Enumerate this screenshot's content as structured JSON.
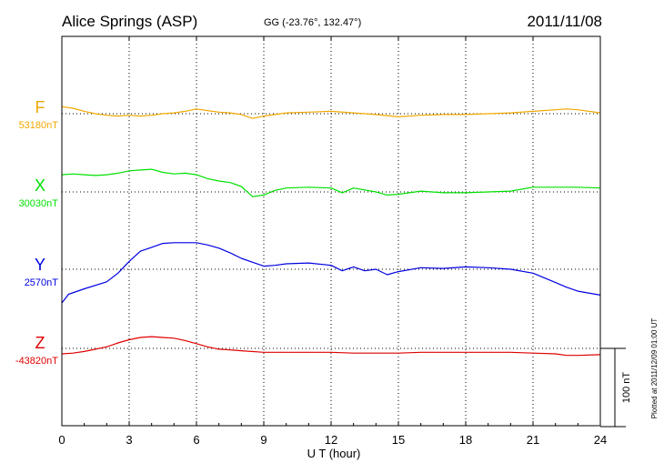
{
  "header": {
    "station": "Alice Springs (ASP)",
    "coords": "GG (-23.76°, 132.47°)",
    "date": "2011/11/08"
  },
  "scale_label": "100 nT",
  "plotted_note": "Plotted at 2011/12/09 01:00 UT",
  "chart_data": {
    "type": "line",
    "title": "Alice Springs (ASP)",
    "xlabel": "U T (hour)",
    "ylabel": "",
    "xlim": [
      0,
      24
    ],
    "x_ticks": [
      "0",
      "3",
      "6",
      "9",
      "12",
      "15",
      "18",
      "21",
      "24"
    ],
    "grid": true,
    "scale_bar_nT": 100,
    "series": [
      {
        "name": "F",
        "baseline_label": "53180nT",
        "baseline_nT": 53180,
        "color": "#f0a800",
        "x": [
          0,
          0.5,
          1,
          1.5,
          2,
          2.5,
          3,
          3.5,
          4,
          4.5,
          5,
          5.5,
          6,
          6.5,
          7,
          7.5,
          8,
          8.5,
          9,
          9.5,
          10,
          11,
          12,
          13,
          14,
          15,
          16,
          17,
          18,
          19,
          20,
          21,
          22,
          22.5,
          23,
          24
        ],
        "y": [
          53189,
          53187,
          53183,
          53180,
          53178,
          53177,
          53178,
          53177,
          53178,
          53180,
          53181,
          53183,
          53186,
          53184,
          53182,
          53181,
          53179,
          53174,
          53177,
          53179,
          53181,
          53182,
          53183,
          53181,
          53179,
          53176,
          53178,
          53179,
          53179,
          53180,
          53181,
          53183,
          53185,
          53186,
          53185,
          53181
        ]
      },
      {
        "name": "X",
        "baseline_label": "30030nT",
        "baseline_nT": 30030,
        "color": "#00e000",
        "x": [
          0,
          0.5,
          1,
          1.5,
          2,
          2.5,
          3,
          3.5,
          4,
          4.5,
          5,
          5.5,
          6,
          6.5,
          7,
          7.5,
          8,
          8.5,
          9,
          9.5,
          10,
          11,
          12,
          12.5,
          13,
          14,
          14.5,
          15,
          15.5,
          16,
          17,
          18,
          19,
          20,
          21,
          22,
          23,
          24
        ],
        "y": [
          30052,
          30053,
          30052,
          30051,
          30052,
          30054,
          30057,
          30058,
          30059,
          30055,
          30053,
          30054,
          30052,
          30047,
          30044,
          30042,
          30037,
          30024,
          30026,
          30032,
          30035,
          30036,
          30035,
          30029,
          30035,
          30030,
          30026,
          30027,
          30029,
          30031,
          30029,
          30029,
          30030,
          30031,
          30036,
          30036,
          30036,
          30035
        ]
      },
      {
        "name": "Y",
        "baseline_label": "2570nT",
        "baseline_nT": 2570,
        "color": "#0000e0",
        "x": [
          0,
          0.3,
          1,
          2,
          2.5,
          3,
          3.5,
          4,
          4.5,
          5,
          5.5,
          6,
          6.5,
          7,
          7.5,
          8,
          8.5,
          9,
          9.5,
          10,
          11,
          12,
          12.5,
          13,
          13.5,
          14,
          14.5,
          15,
          16,
          17,
          18,
          19,
          20,
          21,
          22,
          22.5,
          23,
          24
        ],
        "y": [
          2527,
          2538,
          2545,
          2554,
          2565,
          2580,
          2593,
          2598,
          2603,
          2604,
          2604,
          2604,
          2601,
          2597,
          2591,
          2584,
          2579,
          2574,
          2575,
          2577,
          2578,
          2575,
          2568,
          2573,
          2568,
          2570,
          2563,
          2567,
          2572,
          2571,
          2573,
          2572,
          2570,
          2565,
          2553,
          2547,
          2542,
          2537
        ]
      },
      {
        "name": "Z",
        "baseline_label": "-43820nT",
        "baseline_nT": -43820,
        "color": "#e00000",
        "x": [
          0,
          0.5,
          1,
          1.5,
          2,
          2.5,
          3,
          3.5,
          4,
          4.5,
          5,
          5.5,
          6,
          6.5,
          7,
          7.5,
          8,
          9,
          10,
          11,
          12,
          13,
          14,
          15,
          16,
          17,
          18,
          19,
          20,
          21,
          22,
          22.5,
          23,
          24
        ],
        "y": [
          -43827,
          -43826,
          -43824,
          -43821,
          -43818,
          -43813,
          -43809,
          -43806,
          -43805,
          -43806,
          -43807,
          -43810,
          -43814,
          -43818,
          -43821,
          -43822,
          -43823,
          -43825,
          -43825,
          -43825,
          -43825,
          -43826,
          -43826,
          -43826,
          -43825,
          -43825,
          -43825,
          -43825,
          -43825,
          -43826,
          -43827,
          -43829,
          -43829,
          -43828
        ]
      }
    ]
  }
}
